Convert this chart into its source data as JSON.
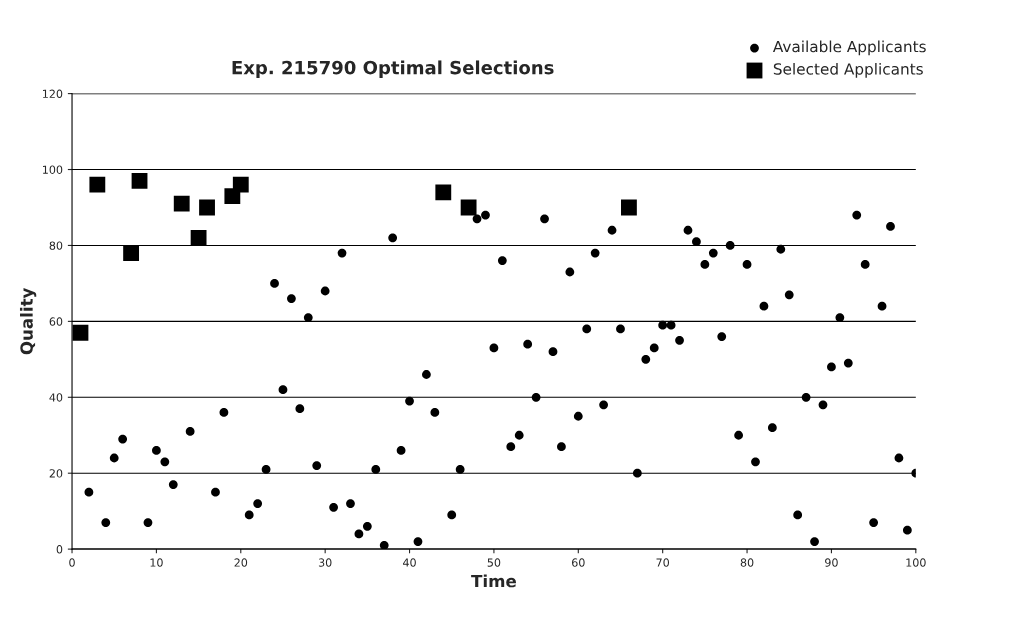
{
  "chart_data": {
    "type": "scatter",
    "title": "Exp. 215790 Optimal Selections",
    "xlabel": "Time",
    "ylabel": "Quality",
    "series": [
      {
        "name": "Available Applicants",
        "color": "#000000",
        "marker": "circle",
        "x": [
          2,
          4,
          5,
          6,
          9,
          10,
          11,
          12,
          14,
          17,
          18,
          21,
          22,
          23,
          24,
          25,
          26,
          27,
          28,
          29,
          30,
          31,
          32,
          33,
          34,
          35,
          36,
          37,
          38,
          39,
          40,
          41,
          42,
          43,
          45,
          46,
          48,
          49,
          50,
          51,
          52,
          53,
          54,
          55,
          56,
          57,
          58,
          59,
          60,
          61,
          62,
          63,
          64,
          65,
          67,
          68,
          69,
          70,
          71,
          72,
          73,
          74,
          75,
          76,
          77,
          78,
          79,
          80,
          81,
          82,
          83,
          84,
          85,
          86,
          87,
          88,
          89,
          90,
          91,
          92,
          93,
          94,
          95,
          96,
          97,
          98,
          99,
          100
        ],
        "values": [
          15,
          7,
          24,
          29,
          7,
          26,
          23,
          17,
          31,
          15,
          36,
          9,
          12,
          21,
          70,
          42,
          66,
          37,
          61,
          22,
          68,
          11,
          78,
          12,
          4,
          6,
          21,
          1,
          82,
          26,
          39,
          2,
          46,
          36,
          9,
          21,
          87,
          88,
          53,
          76,
          27,
          30,
          54,
          40,
          87,
          52,
          27,
          73,
          35,
          58,
          78,
          38,
          84,
          58,
          20,
          50,
          53,
          59,
          59,
          55,
          84,
          81,
          75,
          78,
          56,
          80,
          30,
          75,
          23,
          64,
          32,
          79,
          67,
          9,
          40,
          2,
          38,
          48,
          61,
          49,
          88,
          75,
          7,
          64,
          85,
          24,
          5,
          20
        ]
      },
      {
        "name": "Selected Applicants",
        "color": "#000000",
        "marker": "square",
        "x": [
          1,
          3,
          7,
          8,
          13,
          15,
          16,
          19,
          20,
          44,
          47,
          66
        ],
        "values": [
          57,
          96,
          78,
          97,
          91,
          82,
          90,
          93,
          96,
          94,
          90,
          90
        ]
      }
    ],
    "xlim": [
      0,
      100
    ],
    "xticks": [
      0,
      10,
      20,
      30,
      40,
      50,
      60,
      70,
      80,
      90,
      100
    ],
    "ylim": [
      0,
      120
    ],
    "yticks": [
      0,
      20,
      40,
      60,
      80,
      100,
      120
    ],
    "grid": "y",
    "legend": "top right"
  }
}
